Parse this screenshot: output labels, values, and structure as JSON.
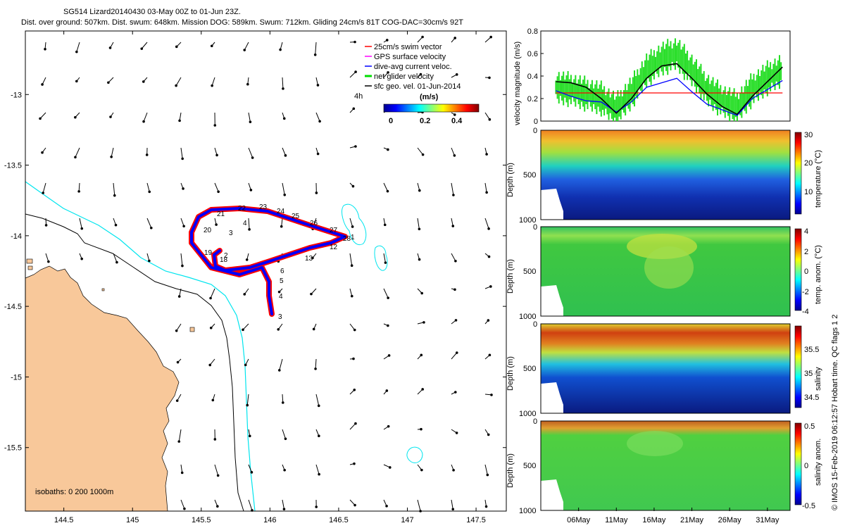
{
  "header": {
    "line1": "SG514 Lizard20140430 03-May 00Z to 01-Jun 23Z.",
    "line2": "Dist. over ground: 507km. Dist. swum: 648km. Mission DOG: 589km. Swum: 712km. Gliding 24cm/s 81T COG-DAC=30cm/s 92T"
  },
  "map": {
    "legend": [
      {
        "label": "25cm/s swim vector",
        "color": "#ff0000"
      },
      {
        "label": "GPS surface velocity",
        "color": "#ff00ff"
      },
      {
        "label": "dive-avg current veloc.",
        "color": "#0000ff"
      },
      {
        "label": "net glider velocity",
        "color": "#00dd00"
      },
      {
        "label": "sfc geo. vel. 01-Jun-2014",
        "color": "#000000"
      }
    ],
    "scale_label": "4h",
    "colorbar_title": "(m/s)",
    "colorbar_ticks": [
      "0",
      "0.2",
      "0.4"
    ],
    "isobath_label": "isobaths: 0   200  1000m",
    "track_labels": [
      "21",
      "22",
      "23",
      "24",
      "25",
      "26",
      "27",
      "20",
      "3",
      "4",
      "28",
      "1",
      "12",
      "13",
      "19",
      "2",
      "18",
      "6",
      "5",
      "4",
      "3"
    ],
    "colors": {
      "land": "#f8c89a",
      "isobath200": "#000000",
      "isobath1000": "#00e5ee",
      "track": "#ff0000",
      "track_inner": "#0000ff"
    }
  },
  "side_text": "© IMOS 15-Feb-2019 06:12:57 Hobart time. QC flags 1  2",
  "chart_data": [
    {
      "type": "line",
      "name": "map-axes",
      "x_ticks": [
        "144.5",
        "145",
        "145.5",
        "146",
        "146.5",
        "147",
        "147.5"
      ],
      "y_ticks": [
        "-13",
        "-13.5",
        "-14",
        "-14.5",
        "-15",
        "-15.5"
      ],
      "xlim": [
        144.22,
        147.72
      ],
      "ylim": [
        -15.95,
        -12.55
      ]
    },
    {
      "type": "line",
      "name": "velocity-magnitude",
      "ylabel": "velocity magnitude (m/s)",
      "ylim": [
        0,
        0.8
      ],
      "y_ticks": [
        "0",
        "0.2",
        "0.4",
        "0.6",
        "0.8"
      ],
      "x": [
        3,
        5,
        7,
        9,
        11,
        13,
        15,
        17,
        19,
        21,
        23,
        25,
        27,
        29,
        31,
        33
      ],
      "series": [
        {
          "name": "swim vector",
          "color": "#ff0000",
          "values": [
            0.25,
            0.25,
            0.25,
            0.25,
            0.25,
            0.25,
            0.25,
            0.25,
            0.25,
            0.25,
            0.25,
            0.25,
            0.25,
            0.25,
            0.25,
            0.25
          ]
        },
        {
          "name": "dive-avg current",
          "color": "#0000ff",
          "values": [
            0.27,
            0.22,
            0.18,
            0.17,
            0.08,
            0.17,
            0.3,
            0.34,
            0.38,
            0.26,
            0.15,
            0.1,
            0.05,
            0.2,
            0.28,
            0.36
          ]
        },
        {
          "name": "net glider velocity",
          "color": "#00dd00",
          "values": [
            0.3,
            0.28,
            0.24,
            0.2,
            0.1,
            0.25,
            0.45,
            0.55,
            0.6,
            0.45,
            0.28,
            0.18,
            0.12,
            0.28,
            0.38,
            0.45
          ]
        },
        {
          "name": "sfc geo. vel.",
          "color": "#000000",
          "values": [
            0.35,
            0.34,
            0.3,
            0.2,
            0.07,
            0.2,
            0.38,
            0.49,
            0.51,
            0.38,
            0.24,
            0.13,
            0.06,
            0.22,
            0.35,
            0.48
          ]
        }
      ]
    },
    {
      "type": "heatmap",
      "name": "temperature",
      "ylabel": "Depth (m)",
      "clabel": "temperature (°C)",
      "depth_ticks": [
        "0",
        "500",
        "1000"
      ],
      "cbar_ticks": [
        "30",
        "20",
        "10"
      ],
      "crange": [
        4,
        30
      ]
    },
    {
      "type": "heatmap",
      "name": "temp-anomaly",
      "ylabel": "Depth (m)",
      "clabel": "temp. anom. (°C)",
      "depth_ticks": [
        "0",
        "500",
        "1000"
      ],
      "cbar_ticks": [
        "4",
        "2",
        "0",
        "-2",
        "-4"
      ],
      "crange": [
        -4,
        4
      ]
    },
    {
      "type": "heatmap",
      "name": "salinity",
      "ylabel": "Depth (m)",
      "clabel": "salinity",
      "depth_ticks": [
        "0",
        "500",
        "1000"
      ],
      "cbar_ticks": [
        "35.5",
        "35",
        "34.5"
      ],
      "crange": [
        34.3,
        35.9
      ]
    },
    {
      "type": "heatmap",
      "name": "salinity-anomaly",
      "ylabel": "Depth (m)",
      "clabel": "salinity anom.",
      "depth_ticks": [
        "0",
        "500",
        "1000"
      ],
      "cbar_ticks": [
        "0.5",
        "0",
        "-0.5"
      ],
      "crange": [
        -0.6,
        0.6
      ]
    },
    {
      "type": "table",
      "name": "time-axis",
      "x_ticks": [
        "06May",
        "11May",
        "16May",
        "21May",
        "26May",
        "31May"
      ]
    }
  ]
}
